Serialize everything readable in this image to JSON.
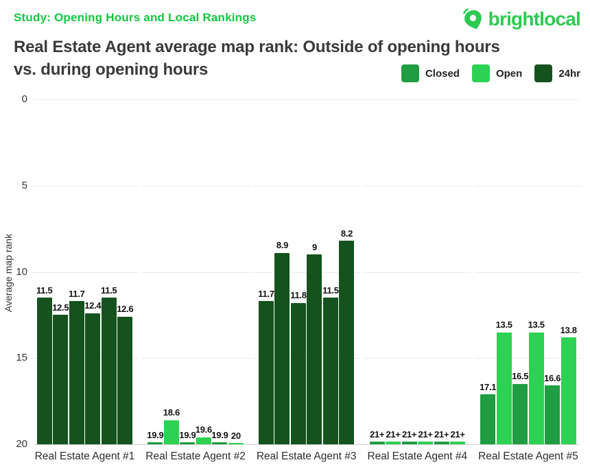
{
  "header": {
    "study_label": "Study: Opening Hours and Local Rankings",
    "brand_name": "brightlocal"
  },
  "title": {
    "line1": "Real Estate Agent average map rank: Outside of opening hours",
    "line2": "vs. during opening hours"
  },
  "legend": {
    "items": [
      {
        "label": "Closed",
        "series": "closed"
      },
      {
        "label": "Open",
        "series": "open"
      },
      {
        "label": "24hr",
        "series": "hr24"
      }
    ]
  },
  "colors": {
    "closed": "#1f9d42",
    "open": "#2dd153",
    "hr24": "#14531d",
    "accent_green": "#12c73e",
    "logo_green": "#2dca52",
    "title_text": "#3a3a3a",
    "grid_line": "#ececec",
    "axis_line": "#d4d4d4"
  },
  "chart_data": {
    "type": "bar",
    "title": "Real Estate Agent average map rank: Outside of opening hours vs. during opening hours",
    "ylabel": "Average map rank",
    "ylim": [
      0,
      20
    ],
    "y_inverted": true,
    "y_ticks": [
      0,
      5,
      10,
      15,
      20
    ],
    "grid": "horizontal",
    "legend_position": "top-right",
    "series_colors": {
      "closed": "#1f9d42",
      "open": "#2dd153",
      "hr24": "#14531d"
    },
    "categories": [
      "Real Estate Agent #1",
      "Real Estate Agent #2",
      "Real Estate Agent #3",
      "Real Estate Agent #4",
      "Real Estate Agent #5"
    ],
    "groups": [
      {
        "category": "Real Estate Agent #1",
        "bars": [
          {
            "series": "hr24",
            "value": 11.5,
            "label": "11.5"
          },
          {
            "series": "hr24",
            "value": 12.5,
            "label": "12.5"
          },
          {
            "series": "hr24",
            "value": 11.7,
            "label": "11.7"
          },
          {
            "series": "hr24",
            "value": 12.4,
            "label": "12.4"
          },
          {
            "series": "hr24",
            "value": 11.5,
            "label": "11.5"
          },
          {
            "series": "hr24",
            "value": 12.6,
            "label": "12.6"
          }
        ]
      },
      {
        "category": "Real Estate Agent #2",
        "bars": [
          {
            "series": "closed",
            "value": 19.9,
            "label": "19.9"
          },
          {
            "series": "open",
            "value": 18.6,
            "label": "18.6"
          },
          {
            "series": "closed",
            "value": 19.9,
            "label": "19.9"
          },
          {
            "series": "open",
            "value": 19.6,
            "label": "19.6"
          },
          {
            "series": "closed",
            "value": 19.9,
            "label": "19.9"
          },
          {
            "series": "open",
            "value": 20,
            "label": "20"
          }
        ]
      },
      {
        "category": "Real Estate Agent #3",
        "bars": [
          {
            "series": "hr24",
            "value": 11.7,
            "label": "11.7"
          },
          {
            "series": "hr24",
            "value": 8.9,
            "label": "8.9"
          },
          {
            "series": "hr24",
            "value": 11.8,
            "label": "11.8"
          },
          {
            "series": "hr24",
            "value": 9,
            "label": "9"
          },
          {
            "series": "hr24",
            "value": 11.5,
            "label": "11.5"
          },
          {
            "series": "hr24",
            "value": 8.2,
            "label": "8.2"
          }
        ]
      },
      {
        "category": "Real Estate Agent #4",
        "bars": [
          {
            "series": "closed",
            "value": null,
            "label": "21+"
          },
          {
            "series": "open",
            "value": null,
            "label": "21+"
          },
          {
            "series": "closed",
            "value": null,
            "label": "21+"
          },
          {
            "series": "open",
            "value": null,
            "label": "21+"
          },
          {
            "series": "closed",
            "value": null,
            "label": "21+"
          },
          {
            "series": "open",
            "value": null,
            "label": "21+"
          }
        ]
      },
      {
        "category": "Real Estate Agent #5",
        "bars": [
          {
            "series": "closed",
            "value": 17.1,
            "label": "17.1"
          },
          {
            "series": "open",
            "value": 13.5,
            "label": "13.5"
          },
          {
            "series": "closed",
            "value": 16.5,
            "label": "16.5"
          },
          {
            "series": "open",
            "value": 13.5,
            "label": "13.5"
          },
          {
            "series": "closed",
            "value": 16.6,
            "label": "16.6"
          },
          {
            "series": "open",
            "value": 13.8,
            "label": "13.8"
          }
        ]
      }
    ]
  }
}
